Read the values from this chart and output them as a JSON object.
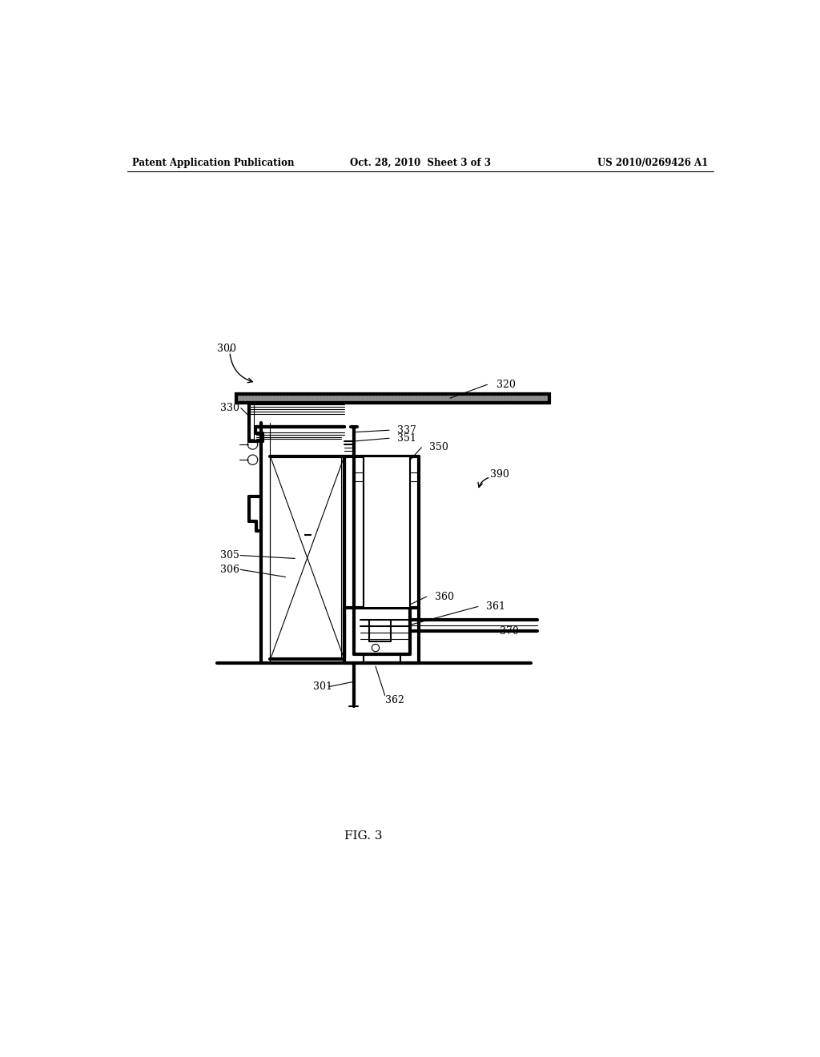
{
  "background_color": "#ffffff",
  "line_color": "#000000",
  "patent_header_left": "Patent Application Publication",
  "patent_header_mid": "Oct. 28, 2010  Sheet 3 of 3",
  "patent_header_right": "US 2010/0269426 A1",
  "fig_label": "FIG. 3"
}
